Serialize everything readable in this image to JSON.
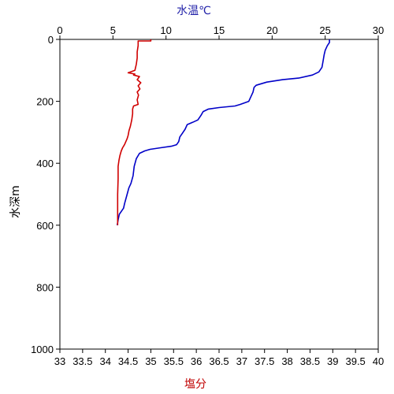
{
  "chart_data": {
    "type": "line",
    "y_axis": {
      "label": "水深m",
      "range": [
        0,
        1000
      ],
      "inverted": true,
      "ticks": [
        0,
        200,
        400,
        600,
        800,
        1000
      ]
    },
    "top_x_axis": {
      "label": "水温℃",
      "label_color": "#1f1fa8",
      "range": [
        0,
        30
      ],
      "ticks": [
        0,
        5,
        10,
        15,
        20,
        25,
        30
      ]
    },
    "bottom_x_axis": {
      "label": "塩分",
      "label_color": "#c00000",
      "range": [
        33,
        40
      ],
      "ticks": [
        33,
        33.5,
        34,
        34.5,
        35,
        35.5,
        36,
        36.5,
        37,
        37.5,
        38,
        38.5,
        39,
        39.5,
        40
      ]
    },
    "grid": false,
    "series": [
      {
        "axis": "top",
        "color": "#0000c8",
        "points": [
          [
            25.4,
            0
          ],
          [
            25.4,
            10
          ],
          [
            25.2,
            20
          ],
          [
            25.0,
            35
          ],
          [
            24.9,
            50
          ],
          [
            24.8,
            70
          ],
          [
            24.7,
            90
          ],
          [
            24.4,
            105
          ],
          [
            23.8,
            115
          ],
          [
            22.5,
            125
          ],
          [
            21.0,
            130
          ],
          [
            19.5,
            138
          ],
          [
            18.5,
            148
          ],
          [
            18.3,
            155
          ],
          [
            18.2,
            170
          ],
          [
            18.0,
            185
          ],
          [
            17.8,
            200
          ],
          [
            17.0,
            210
          ],
          [
            16.5,
            215
          ],
          [
            15.0,
            220
          ],
          [
            14.0,
            225
          ],
          [
            13.5,
            233
          ],
          [
            13.3,
            245
          ],
          [
            13.0,
            260
          ],
          [
            12.5,
            268
          ],
          [
            12.0,
            275
          ],
          [
            11.8,
            290
          ],
          [
            11.5,
            305
          ],
          [
            11.3,
            315
          ],
          [
            11.2,
            330
          ],
          [
            11.0,
            340
          ],
          [
            10.5,
            345
          ],
          [
            9.5,
            350
          ],
          [
            8.5,
            355
          ],
          [
            8.0,
            360
          ],
          [
            7.5,
            368
          ],
          [
            7.2,
            385
          ],
          [
            7.0,
            410
          ],
          [
            6.9,
            440
          ],
          [
            6.7,
            465
          ],
          [
            6.5,
            480
          ],
          [
            6.3,
            505
          ],
          [
            6.1,
            530
          ],
          [
            6.0,
            545
          ],
          [
            5.8,
            555
          ],
          [
            5.6,
            565
          ],
          [
            5.5,
            580
          ],
          [
            5.4,
            600
          ]
        ]
      },
      {
        "axis": "bottom",
        "color": "#d00000",
        "points": [
          [
            35.0,
            0
          ],
          [
            35.0,
            5
          ],
          [
            34.72,
            5
          ],
          [
            34.72,
            20
          ],
          [
            34.7,
            40
          ],
          [
            34.7,
            60
          ],
          [
            34.68,
            80
          ],
          [
            34.65,
            100
          ],
          [
            34.5,
            108
          ],
          [
            34.65,
            112
          ],
          [
            34.62,
            115
          ],
          [
            34.75,
            120
          ],
          [
            34.7,
            130
          ],
          [
            34.78,
            140
          ],
          [
            34.72,
            150
          ],
          [
            34.76,
            160
          ],
          [
            34.7,
            170
          ],
          [
            34.73,
            180
          ],
          [
            34.7,
            195
          ],
          [
            34.72,
            210
          ],
          [
            34.62,
            215
          ],
          [
            34.6,
            225
          ],
          [
            34.6,
            240
          ],
          [
            34.58,
            260
          ],
          [
            34.55,
            280
          ],
          [
            34.52,
            295
          ],
          [
            34.5,
            310
          ],
          [
            34.48,
            320
          ],
          [
            34.45,
            330
          ],
          [
            34.42,
            340
          ],
          [
            34.38,
            350
          ],
          [
            34.35,
            360
          ],
          [
            34.32,
            375
          ],
          [
            34.3,
            390
          ],
          [
            34.28,
            410
          ],
          [
            34.28,
            450
          ],
          [
            34.27,
            500
          ],
          [
            34.27,
            550
          ],
          [
            34.27,
            600
          ]
        ]
      }
    ]
  }
}
